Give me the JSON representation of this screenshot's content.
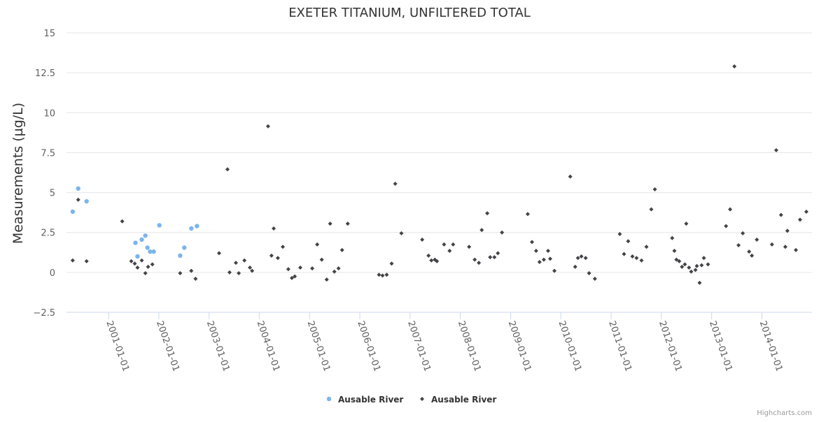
{
  "chart_data": {
    "type": "scatter",
    "title": "EXETER TITANIUM, UNFILTERED TOTAL",
    "xlabel": "",
    "ylabel": "Measurements (µg/L)",
    "xlim": [
      "2000-03-01",
      "2014-12-31"
    ],
    "ylim": [
      -2.5,
      15
    ],
    "yticks": [
      -2.5,
      0,
      2.5,
      5,
      7.5,
      10,
      12.5,
      15
    ],
    "ytick_labels": [
      "−2.5",
      "0",
      "2.5",
      "5",
      "7.5",
      "10",
      "12.5",
      "15"
    ],
    "xticks": [
      "2001-01-01",
      "2002-01-01",
      "2003-01-01",
      "2004-01-01",
      "2005-01-01",
      "2006-01-01",
      "2007-01-01",
      "2008-01-01",
      "2009-01-01",
      "2010-01-01",
      "2011-01-01",
      "2012-01-01",
      "2013-01-01",
      "2014-01-01"
    ],
    "xtick_labels": [
      "2001-01-01",
      "2002-01-01",
      "2003-01-01",
      "2004-01-01",
      "2005-01-01",
      "2006-01-01",
      "2007-01-01",
      "2008-01-01",
      "2009-01-01",
      "2010-01-01",
      "2011-01-01",
      "2012-01-01",
      "2013-01-01",
      "2014-01-01"
    ],
    "grid": "horizontal",
    "legend_position": "bottom-center",
    "series": [
      {
        "name": "Ausable River",
        "color": "#7cb5ec",
        "marker": "circle",
        "points": [
          [
            "2000-04-15",
            3.8
          ],
          [
            "2000-05-25",
            5.25
          ],
          [
            "2000-07-25",
            4.45
          ],
          [
            "2001-07-15",
            1.85
          ],
          [
            "2001-07-30",
            1.0
          ],
          [
            "2001-08-30",
            2.05
          ],
          [
            "2001-09-25",
            2.3
          ],
          [
            "2001-10-10",
            1.55
          ],
          [
            "2001-10-30",
            1.3
          ],
          [
            "2001-11-25",
            1.3
          ],
          [
            "2002-01-05",
            2.95
          ],
          [
            "2002-06-05",
            1.05
          ],
          [
            "2002-07-05",
            1.55
          ],
          [
            "2002-08-25",
            2.75
          ],
          [
            "2002-10-05",
            2.9
          ]
        ]
      },
      {
        "name": "Ausable River",
        "color": "#434348",
        "marker": "diamond",
        "points": [
          [
            "2000-04-15",
            0.75
          ],
          [
            "2000-05-25",
            4.55
          ],
          [
            "2000-07-25",
            0.7
          ],
          [
            "2001-04-10",
            3.2
          ],
          [
            "2001-06-15",
            0.7
          ],
          [
            "2001-07-10",
            0.55
          ],
          [
            "2001-07-30",
            0.3
          ],
          [
            "2001-08-30",
            0.75
          ],
          [
            "2001-09-25",
            -0.05
          ],
          [
            "2001-10-15",
            0.35
          ],
          [
            "2001-11-15",
            0.5
          ],
          [
            "2002-06-05",
            -0.05
          ],
          [
            "2002-08-25",
            0.1
          ],
          [
            "2002-09-25",
            -0.4
          ],
          [
            "2003-03-15",
            1.2
          ],
          [
            "2003-05-15",
            6.45
          ],
          [
            "2003-05-30",
            0.0
          ],
          [
            "2003-07-15",
            0.6
          ],
          [
            "2003-08-05",
            -0.05
          ],
          [
            "2003-09-15",
            0.75
          ],
          [
            "2003-10-25",
            0.3
          ],
          [
            "2003-11-10",
            0.1
          ],
          [
            "2004-03-05",
            9.15
          ],
          [
            "2004-03-30",
            1.05
          ],
          [
            "2004-04-15",
            2.75
          ],
          [
            "2004-05-15",
            0.9
          ],
          [
            "2004-06-20",
            1.6
          ],
          [
            "2004-07-30",
            0.2
          ],
          [
            "2004-08-25",
            -0.35
          ],
          [
            "2004-09-15",
            -0.25
          ],
          [
            "2004-10-25",
            0.3
          ],
          [
            "2005-01-20",
            0.25
          ],
          [
            "2005-02-25",
            1.75
          ],
          [
            "2005-03-30",
            0.8
          ],
          [
            "2005-05-05",
            -0.45
          ],
          [
            "2005-05-30",
            3.05
          ],
          [
            "2005-06-30",
            0.05
          ],
          [
            "2005-07-30",
            0.25
          ],
          [
            "2005-08-25",
            1.4
          ],
          [
            "2005-10-05",
            3.05
          ],
          [
            "2006-05-20",
            -0.15
          ],
          [
            "2006-06-15",
            -0.2
          ],
          [
            "2006-07-15",
            -0.15
          ],
          [
            "2006-08-20",
            0.55
          ],
          [
            "2006-09-15",
            5.55
          ],
          [
            "2006-10-30",
            2.45
          ],
          [
            "2007-03-30",
            2.05
          ],
          [
            "2007-05-15",
            1.05
          ],
          [
            "2007-06-05",
            0.75
          ],
          [
            "2007-06-30",
            0.8
          ],
          [
            "2007-07-15",
            0.7
          ],
          [
            "2007-09-05",
            1.75
          ],
          [
            "2007-10-15",
            1.35
          ],
          [
            "2007-11-10",
            1.75
          ],
          [
            "2008-03-05",
            1.6
          ],
          [
            "2008-04-15",
            0.8
          ],
          [
            "2008-05-15",
            0.6
          ],
          [
            "2008-06-05",
            2.65
          ],
          [
            "2008-07-15",
            3.7
          ],
          [
            "2008-08-05",
            0.95
          ],
          [
            "2008-09-05",
            0.95
          ],
          [
            "2008-09-30",
            1.2
          ],
          [
            "2008-10-30",
            2.5
          ],
          [
            "2009-05-05",
            3.65
          ],
          [
            "2009-06-05",
            1.9
          ],
          [
            "2009-07-05",
            1.35
          ],
          [
            "2009-07-30",
            0.65
          ],
          [
            "2009-08-30",
            0.8
          ],
          [
            "2009-09-30",
            1.35
          ],
          [
            "2009-10-15",
            0.85
          ],
          [
            "2009-11-15",
            0.1
          ],
          [
            "2010-03-10",
            6.0
          ],
          [
            "2010-04-15",
            0.35
          ],
          [
            "2010-05-05",
            0.9
          ],
          [
            "2010-05-30",
            1.0
          ],
          [
            "2010-06-30",
            0.9
          ],
          [
            "2010-07-25",
            -0.05
          ],
          [
            "2010-09-05",
            -0.4
          ],
          [
            "2011-03-05",
            2.4
          ],
          [
            "2011-04-05",
            1.15
          ],
          [
            "2011-05-05",
            1.95
          ],
          [
            "2011-06-05",
            1.0
          ],
          [
            "2011-07-05",
            0.9
          ],
          [
            "2011-08-10",
            0.75
          ],
          [
            "2011-09-15",
            1.6
          ],
          [
            "2011-10-20",
            3.95
          ],
          [
            "2011-11-15",
            5.2
          ],
          [
            "2012-03-20",
            2.15
          ],
          [
            "2012-04-05",
            1.35
          ],
          [
            "2012-04-20",
            0.8
          ],
          [
            "2012-05-10",
            0.7
          ],
          [
            "2012-05-30",
            0.35
          ],
          [
            "2012-06-30",
            3.05
          ],
          [
            "2012-06-20",
            0.5
          ],
          [
            "2012-07-20",
            0.3
          ],
          [
            "2012-08-05",
            0.05
          ],
          [
            "2012-09-05",
            0.15
          ],
          [
            "2012-09-15",
            0.4
          ],
          [
            "2012-10-05",
            -0.65
          ],
          [
            "2012-10-20",
            0.45
          ],
          [
            "2012-11-05",
            0.9
          ],
          [
            "2012-12-05",
            0.5
          ],
          [
            "2013-04-15",
            2.9
          ],
          [
            "2013-05-15",
            3.95
          ],
          [
            "2013-06-15",
            12.9
          ],
          [
            "2013-07-15",
            1.7
          ],
          [
            "2013-08-15",
            2.45
          ],
          [
            "2013-09-30",
            1.3
          ],
          [
            "2013-10-20",
            1.05
          ],
          [
            "2013-11-25",
            2.05
          ],
          [
            "2014-03-15",
            1.75
          ],
          [
            "2014-04-15",
            7.65
          ],
          [
            "2014-05-20",
            3.6
          ],
          [
            "2014-06-20",
            1.6
          ],
          [
            "2014-07-05",
            2.6
          ],
          [
            "2014-09-05",
            1.4
          ],
          [
            "2014-10-05",
            3.3
          ],
          [
            "2014-11-20",
            3.8
          ]
        ]
      }
    ]
  },
  "credits": "Highcharts.com"
}
